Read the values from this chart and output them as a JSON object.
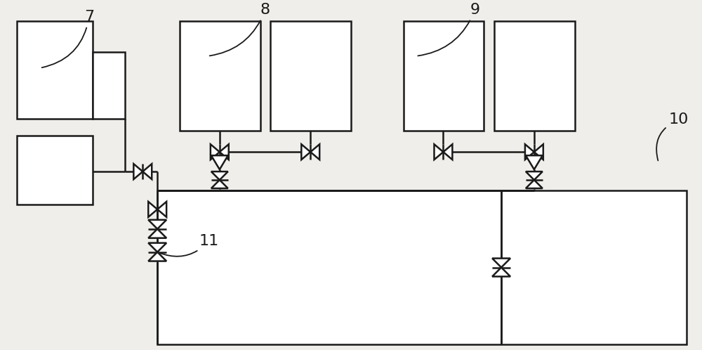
{
  "bg_color": "#f0eeea",
  "line_color": "#1a1a1a",
  "lw": 1.8,
  "fig_w": 10.0,
  "fig_h": 4.98,
  "dpi": 100
}
